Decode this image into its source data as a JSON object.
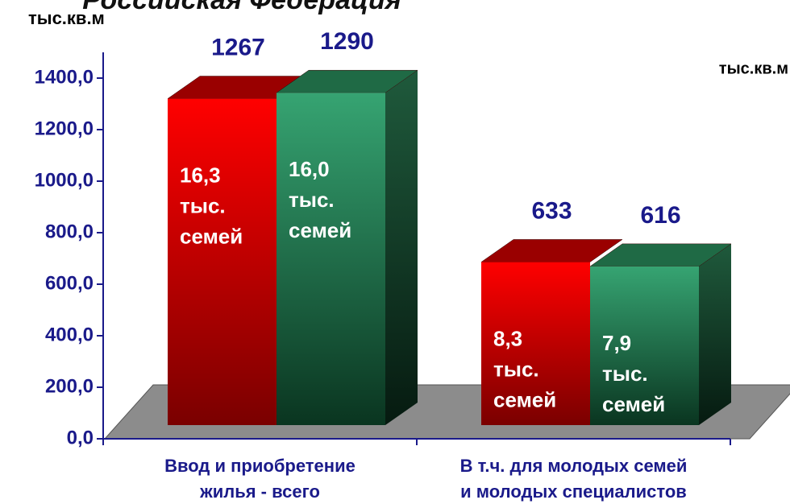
{
  "chart_data": {
    "type": "bar3d",
    "title": "Российская Федерация",
    "y_label": "тыс.кв.м",
    "y2_label": "тыс.кв.м",
    "categories": [
      [
        "Ввод и приобретение",
        "жилья - всего"
      ],
      [
        "В т.ч. для молодых семей",
        "и молодых специалистов"
      ]
    ],
    "series": [
      {
        "color": "#ff0000",
        "values": [
          1267,
          633
        ],
        "notes": [
          [
            "16,3",
            "тыс.",
            "семей"
          ],
          [
            "8,3",
            "тыс.",
            "семей"
          ]
        ]
      },
      {
        "color": "#2e9a68",
        "values": [
          1290,
          616
        ],
        "notes": [
          [
            "16,0",
            "тыс.",
            "семей"
          ],
          [
            "7,9",
            "тыс.",
            "семей"
          ]
        ]
      }
    ],
    "ylim": [
      0,
      1500
    ],
    "yticks": [
      {
        "value": 0,
        "label": "0,0"
      },
      {
        "value": 200,
        "label": "200,0"
      },
      {
        "value": 400,
        "label": "400,0"
      },
      {
        "value": 600,
        "label": "600,0"
      },
      {
        "value": 800,
        "label": "800,0"
      },
      {
        "value": 1000,
        "label": "1000,0"
      },
      {
        "value": 1200,
        "label": "1200,0"
      },
      {
        "value": 1400,
        "label": "1400,0"
      }
    ]
  }
}
